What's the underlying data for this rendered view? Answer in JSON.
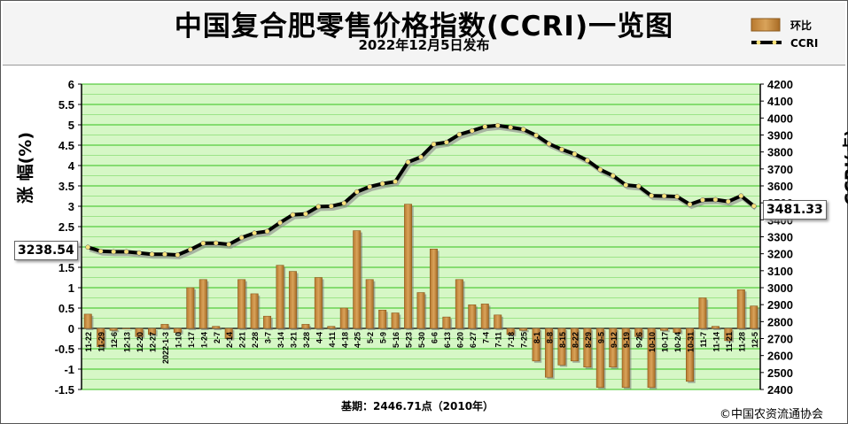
{
  "header": {
    "title": "中国复合肥零售价格指数(CCRI)一览图",
    "subtitle": "2022年12月5日发布"
  },
  "legend": {
    "bar_label": "环比",
    "line_label": "CCRI"
  },
  "axes": {
    "left_label": "涨 幅(%)",
    "right_label": "CCRI(点)"
  },
  "footer": {
    "baseline_note": "基期：2446.71点（2010年）",
    "copyright": "©中国农资流通协会"
  },
  "callouts": {
    "start_value": "3238.54",
    "end_value": "3481.33"
  },
  "colors": {
    "bar_fill": "#d9a35a",
    "bar_edge": "#8b5a1e",
    "plot_bg": "#d6f7c6",
    "grid": "#34c21a",
    "line": "#000000",
    "marker": "#f7e27a"
  },
  "chart_data": {
    "type": "bar+line",
    "title": "中国复合肥零售价格指数(CCRI)一览图",
    "categories": [
      "11-22",
      "11-29",
      "12-6",
      "12-13",
      "12-20",
      "12-27",
      "2022-1-3",
      "1-10",
      "1-17",
      "1-24",
      "2-7",
      "2-14",
      "2-21",
      "2-28",
      "3-7",
      "3-14",
      "3-21",
      "3-28",
      "4-4",
      "4-11",
      "4-18",
      "4-25",
      "5-2",
      "5-9",
      "5-16",
      "5-23",
      "5-30",
      "6-6",
      "6-13",
      "6-20",
      "6-27",
      "7-4",
      "7-11",
      "7-18",
      "7-25",
      "8-1",
      "8-8",
      "8-15",
      "8-22",
      "8-29",
      "9-5",
      "9-12",
      "9-19",
      "9-26",
      "10-10",
      "10-17",
      "10-24",
      "10-31",
      "11-7",
      "11-14",
      "11-21",
      "11-28",
      "12-5"
    ],
    "xlabel": "",
    "y_left": {
      "label": "涨 幅(%)",
      "range": [
        -1.5,
        6
      ],
      "ticks": [
        -1.5,
        -1,
        -0.5,
        0,
        0.5,
        1,
        1.5,
        2,
        2.5,
        3,
        3.5,
        4,
        4.5,
        5,
        5.5,
        6
      ]
    },
    "y_right": {
      "label": "CCRI(点)",
      "range": [
        2400,
        4200
      ],
      "ticks": [
        2400,
        2500,
        2600,
        2700,
        2800,
        2900,
        3000,
        3100,
        3200,
        3300,
        3400,
        3500,
        3600,
        3700,
        3800,
        3900,
        4000,
        4100,
        4200
      ]
    },
    "grid": true,
    "legend_position": "top-right",
    "series": [
      {
        "name": "环比",
        "axis": "left",
        "kind": "bar",
        "values": [
          0.35,
          -0.45,
          -0.05,
          0,
          -0.2,
          -0.15,
          0.1,
          -0.1,
          1.0,
          1.2,
          0.05,
          -0.25,
          1.2,
          0.85,
          0.3,
          1.55,
          1.4,
          0.1,
          1.25,
          0.05,
          0.5,
          2.4,
          1.2,
          0.45,
          0.38,
          3.05,
          0.88,
          1.95,
          0.28,
          1.2,
          0.58,
          0.6,
          0.33,
          -0.15,
          -0.05,
          -0.8,
          -1.2,
          -0.9,
          -0.8,
          -0.95,
          -1.45,
          -0.95,
          -1.45,
          -0.2,
          -1.45,
          -0.05,
          -0.1,
          -1.3,
          0.75,
          0.05,
          -0.3,
          0.95,
          0.55
        ]
      },
      {
        "name": "CCRI",
        "axis": "right",
        "kind": "line",
        "values": [
          3238.54,
          3215,
          3212,
          3212,
          3205,
          3197,
          3197,
          3193,
          3225,
          3262,
          3263,
          3255,
          3295,
          3322,
          3332,
          3383,
          3430,
          3435,
          3478,
          3480,
          3498,
          3565,
          3595,
          3613,
          3625,
          3740,
          3770,
          3846,
          3857,
          3903,
          3925,
          3949,
          3956,
          3945,
          3933,
          3898,
          3848,
          3815,
          3788,
          3750,
          3696,
          3660,
          3605,
          3598,
          3542,
          3540,
          3537,
          3491,
          3517,
          3519,
          3508,
          3541,
          3481.33
        ]
      }
    ]
  }
}
